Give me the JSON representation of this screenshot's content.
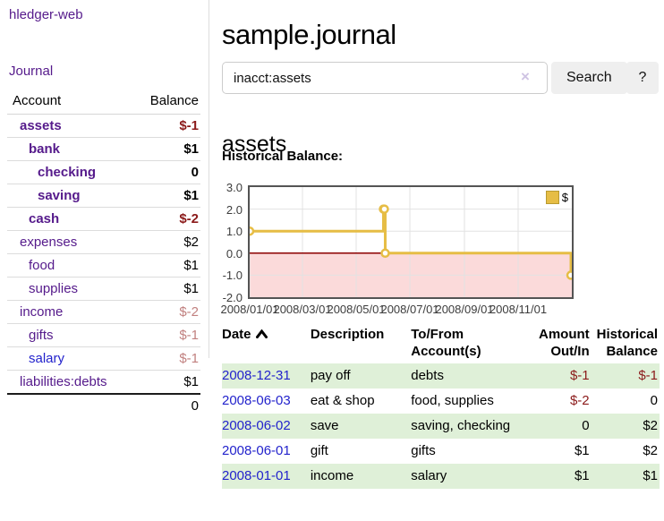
{
  "app": {
    "brand": "hledger-web",
    "nav": {
      "journal": "Journal"
    }
  },
  "colors": {
    "link_purple": "#551a8b",
    "link_blue": "#2323cc",
    "negative_strong": "#8b1a1a",
    "negative_light": "#c1807f",
    "row_green": "#dff0d8",
    "series_gold": "#e6bd45"
  },
  "sidebar": {
    "header": {
      "account": "Account",
      "balance": "Balance"
    },
    "accounts": [
      {
        "name": "assets",
        "balance": "$-1"
      },
      {
        "name": "bank",
        "balance": "$1"
      },
      {
        "name": "checking",
        "balance": "0"
      },
      {
        "name": "saving",
        "balance": "$1"
      },
      {
        "name": "cash",
        "balance": "$-2"
      },
      {
        "name": "expenses",
        "balance": "$2"
      },
      {
        "name": "food",
        "balance": "$1"
      },
      {
        "name": "supplies",
        "balance": "$1"
      },
      {
        "name": "income",
        "balance": "$-2"
      },
      {
        "name": "gifts",
        "balance": "$-1"
      },
      {
        "name": "salary",
        "balance": "$-1"
      },
      {
        "name": "liabilities:debts",
        "balance": "$1"
      }
    ],
    "total": "0"
  },
  "page": {
    "title": "sample.journal",
    "account_heading": "assets",
    "chart_heading": "Historical Balance:"
  },
  "search": {
    "value": "inacct:assets",
    "clear_label": "×",
    "submit_label": "Search",
    "help_label": "?"
  },
  "chart_data": {
    "type": "line",
    "title": "Historical Balance:",
    "x_type": "date",
    "xlim_days": [
      0,
      366
    ],
    "ylim": [
      -2,
      3
    ],
    "xticks": [
      {
        "label": "2008/01/01",
        "day": 0
      },
      {
        "label": "2008/03/01",
        "day": 60
      },
      {
        "label": "2008/05/01",
        "day": 121
      },
      {
        "label": "2008/07/01",
        "day": 182
      },
      {
        "label": "2008/09/01",
        "day": 244
      },
      {
        "label": "2008/11/01",
        "day": 305
      }
    ],
    "yticks": [
      {
        "label": "3.0",
        "value": 3
      },
      {
        "label": "2.0",
        "value": 2
      },
      {
        "label": "1.0",
        "value": 1
      },
      {
        "label": "0.0",
        "value": 0
      },
      {
        "label": "-1.0",
        "value": -1
      },
      {
        "label": "-2.0",
        "value": -2
      }
    ],
    "series": [
      {
        "name": "$",
        "color": "#e6bd45",
        "line_style": "step-after",
        "points": [
          {
            "date": "2008-01-01",
            "day": 0,
            "value": 1
          },
          {
            "date": "2008-06-01",
            "day": 152,
            "value": 2
          },
          {
            "date": "2008-06-02",
            "day": 153,
            "value": 2
          },
          {
            "date": "2008-06-03",
            "day": 154,
            "value": 0
          },
          {
            "date": "2008-12-31",
            "day": 365,
            "value": -1
          }
        ]
      }
    ],
    "legend": {
      "label": "$",
      "position": "top-right"
    },
    "grid": true,
    "zero_line_color": "#8b0000",
    "negative_fill_color": "#fbdada"
  },
  "register": {
    "headers": {
      "date": "Date",
      "description": "Description",
      "accounts": "To/From Account(s)",
      "amount": "Amount Out/In",
      "balance": "Historical Balance"
    },
    "rows": [
      {
        "date": "2008-12-31",
        "description": "pay off",
        "accounts": "debts",
        "amount": "$-1",
        "balance": "$-1"
      },
      {
        "date": "2008-06-03",
        "description": "eat & shop",
        "accounts": "food, supplies",
        "amount": "$-2",
        "balance": "0"
      },
      {
        "date": "2008-06-02",
        "description": "save",
        "accounts": "saving, checking",
        "amount": "0",
        "balance": "$2"
      },
      {
        "date": "2008-06-01",
        "description": "gift",
        "accounts": "gifts",
        "amount": "$1",
        "balance": "$2"
      },
      {
        "date": "2008-01-01",
        "description": "income",
        "accounts": "salary",
        "amount": "$1",
        "balance": "$1"
      }
    ]
  }
}
